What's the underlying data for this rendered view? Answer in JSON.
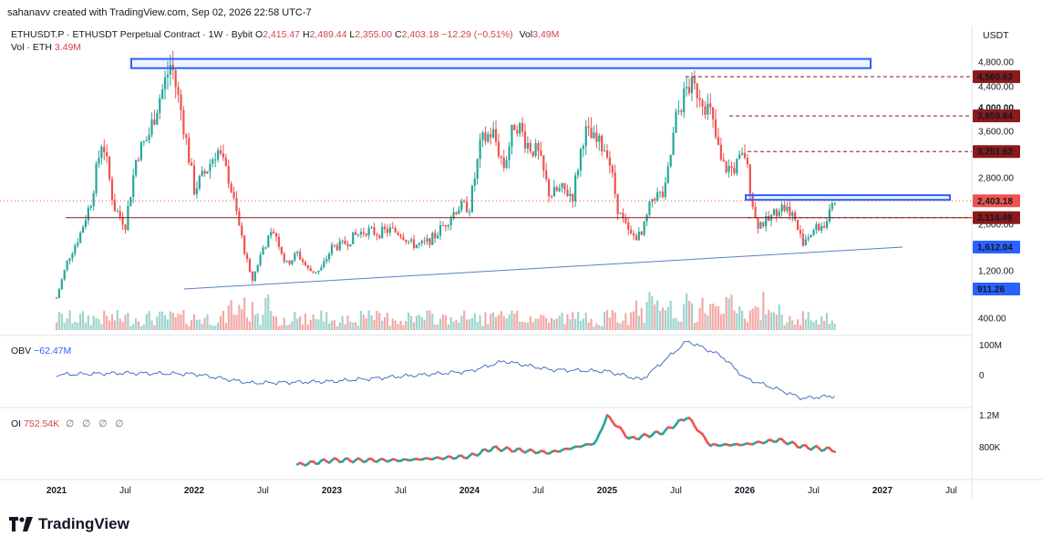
{
  "header": {
    "creator": "sahanavv created with TradingView.com, Sep 02, 2026 22:58 UTC-7",
    "symbol": "ETHUSDT.P · ETHUSDT Perpetual Contract · 1W · Bybit",
    "open_label": "O",
    "open": "2,415.47",
    "high_label": "H",
    "high": "2,489.44",
    "low_label": "L",
    "low": "2,355.00",
    "close_label": "C",
    "close": "2,403.18",
    "change": "−12.29 (−0.51%)",
    "vol_label": "Vol",
    "vol": "3.49M",
    "vol_sub_label": "Vol · ETH",
    "vol_sub": "3.49M",
    "currency": "USDT"
  },
  "obv": {
    "label": "OBV",
    "value": "−62.47M",
    "axis": [
      "100M",
      "0"
    ]
  },
  "oi": {
    "label": "OI",
    "value": "752.54K",
    "extras": "∅ ∅ ∅ ∅",
    "axis": [
      "1.2M",
      "800K"
    ]
  },
  "brand": {
    "name": "TradingView"
  },
  "colors": {
    "up": "#26a69a",
    "down": "#ef5350",
    "line": "#2962ff",
    "level": "#8b1a1a",
    "box": "#2962ff"
  },
  "chart_data": {
    "type": "candlestick",
    "title": "ETHUSDT.P · ETHUSDT Perpetual Contract · 1W · Bybit",
    "xlabel": "",
    "ylabel": "USDT",
    "ylim": [
      200,
      5200
    ],
    "x_ticks": [
      "2021",
      "Jul",
      "2022",
      "Jul",
      "2023",
      "Jul",
      "2024",
      "Jul",
      "2025",
      "Jul",
      "2026",
      "Jul",
      "2027",
      "Jul"
    ],
    "y_ticks": [
      "400.00",
      "1,200.00",
      "2,000.00",
      "2,800.00",
      "3,600.00",
      "4,000.00",
      "4,400.00",
      "4,800.00"
    ],
    "price_labels": [
      {
        "value": "4,560.63",
        "kind": "level"
      },
      {
        "value": "3,859.84",
        "kind": "level"
      },
      {
        "value": "3,251.62",
        "kind": "level"
      },
      {
        "value": "2,403.18",
        "kind": "last"
      },
      {
        "value": "2,114.49",
        "kind": "level"
      },
      {
        "value": "1,612.04",
        "kind": "trend"
      },
      {
        "value": "911.26",
        "kind": "trend"
      }
    ],
    "price_path": [
      [
        "2021-01",
        740
      ],
      [
        "2021-02",
        1400
      ],
      [
        "2021-03",
        1800
      ],
      [
        "2021-04",
        2400
      ],
      [
        "2021-05",
        3500
      ],
      [
        "2021-06",
        2300
      ],
      [
        "2021-07",
        2000
      ],
      [
        "2021-08",
        3200
      ],
      [
        "2021-09",
        3500
      ],
      [
        "2021-10",
        4200
      ],
      [
        "2021-11",
        4800
      ],
      [
        "2021-12",
        3800
      ],
      [
        "2022-01",
        2600
      ],
      [
        "2022-02",
        2900
      ],
      [
        "2022-03",
        3300
      ],
      [
        "2022-04",
        2800
      ],
      [
        "2022-05",
        1900
      ],
      [
        "2022-06",
        1000
      ],
      [
        "2022-07",
        1600
      ],
      [
        "2022-08",
        1900
      ],
      [
        "2022-09",
        1300
      ],
      [
        "2022-10",
        1500
      ],
      [
        "2022-11",
        1200
      ],
      [
        "2022-12",
        1200
      ],
      [
        "2023-01",
        1600
      ],
      [
        "2023-02",
        1650
      ],
      [
        "2023-03",
        1800
      ],
      [
        "2023-04",
        1900
      ],
      [
        "2023-05",
        1850
      ],
      [
        "2023-06",
        1900
      ],
      [
        "2023-07",
        1850
      ],
      [
        "2023-08",
        1650
      ],
      [
        "2023-09",
        1650
      ],
      [
        "2023-10",
        1800
      ],
      [
        "2023-11",
        2050
      ],
      [
        "2023-12",
        2300
      ],
      [
        "2024-01",
        2300
      ],
      [
        "2024-02",
        3400
      ],
      [
        "2024-03",
        3600
      ],
      [
        "2024-04",
        3000
      ],
      [
        "2024-05",
        3800
      ],
      [
        "2024-06",
        3400
      ],
      [
        "2024-07",
        3200
      ],
      [
        "2024-08",
        2500
      ],
      [
        "2024-09",
        2600
      ],
      [
        "2024-10",
        2500
      ],
      [
        "2024-11",
        3600
      ],
      [
        "2024-12",
        3400
      ],
      [
        "2025-01",
        3300
      ],
      [
        "2025-02",
        2200
      ],
      [
        "2025-03",
        1800
      ],
      [
        "2025-04",
        1800
      ],
      [
        "2025-05",
        2500
      ],
      [
        "2025-06",
        2500
      ],
      [
        "2025-07",
        3800
      ],
      [
        "2025-08",
        4400
      ],
      [
        "2025-09",
        4300
      ],
      [
        "2025-10",
        3900
      ],
      [
        "2025-11",
        3000
      ],
      [
        "2025-12",
        2950
      ],
      [
        "2026-01",
        3200
      ],
      [
        "2026-02",
        2000
      ],
      [
        "2026-03",
        2050
      ],
      [
        "2026-04",
        2300
      ],
      [
        "2026-05",
        2250
      ],
      [
        "2026-06",
        1700
      ],
      [
        "2026-07",
        1900
      ],
      [
        "2026-08",
        2000
      ],
      [
        "2026-09",
        2403
      ]
    ],
    "resistance_zone": [
      4700,
      4850
    ],
    "current_zone": [
      2420,
      2500
    ],
    "horizontal_level": 2114.49,
    "trendline": [
      [
        "2022-06",
        911.26
      ],
      [
        "2026-12",
        1612.04
      ]
    ],
    "obv_series": [
      [
        "2021-01",
        0
      ],
      [
        "2021-07",
        5
      ],
      [
        "2022-01",
        2
      ],
      [
        "2022-06",
        -25
      ],
      [
        "2023-01",
        -20
      ],
      [
        "2023-07",
        -5
      ],
      [
        "2024-01",
        10
      ],
      [
        "2024-04",
        40
      ],
      [
        "2024-08",
        15
      ],
      [
        "2025-01",
        10
      ],
      [
        "2025-04",
        -15
      ],
      [
        "2025-08",
        100
      ],
      [
        "2025-11",
        55
      ],
      [
        "2026-01",
        -10
      ],
      [
        "2026-04",
        -45
      ],
      [
        "2026-06",
        -70
      ],
      [
        "2026-09",
        -62.47
      ]
    ],
    "oi_series": [
      [
        "2022-10",
        560
      ],
      [
        "2023-01",
        620
      ],
      [
        "2023-07",
        620
      ],
      [
        "2024-01",
        670
      ],
      [
        "2024-03",
        780
      ],
      [
        "2024-08",
        720
      ],
      [
        "2024-12",
        850
      ],
      [
        "2025-01",
        1210
      ],
      [
        "2025-03",
        900
      ],
      [
        "2025-06",
        1000
      ],
      [
        "2025-08",
        1200
      ],
      [
        "2025-10",
        820
      ],
      [
        "2026-01",
        830
      ],
      [
        "2026-04",
        890
      ],
      [
        "2026-06",
        800
      ],
      [
        "2026-09",
        752.54
      ]
    ]
  }
}
